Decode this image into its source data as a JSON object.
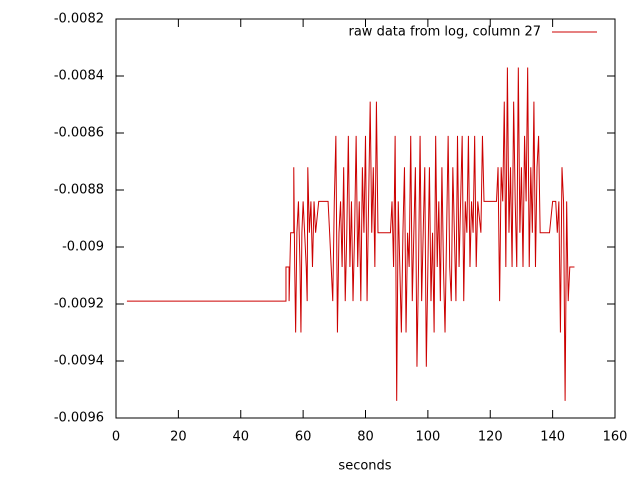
{
  "chart_data": {
    "type": "line",
    "xlabel": "seconds",
    "x": [
      3.5,
      54.5,
      54.5,
      55.5,
      55.5,
      56,
      57,
      57,
      57.3,
      57.6,
      58,
      58.5,
      59,
      59.3,
      59.6,
      60,
      61,
      61.3,
      61.5,
      62,
      62.5,
      63,
      63.5,
      64,
      65,
      66,
      68,
      68.5,
      69,
      69.5,
      70,
      70.5,
      71,
      71.5,
      72,
      72.5,
      73,
      73.5,
      74,
      74.5,
      75,
      75.5,
      76,
      76.5,
      77,
      77.5,
      78,
      78.5,
      79,
      79.5,
      80,
      80.5,
      81,
      81.5,
      82,
      82.5,
      83,
      83.5,
      84,
      86,
      88,
      88.5,
      89,
      89.5,
      90,
      90.5,
      91,
      91.5,
      92,
      92.5,
      93,
      93.5,
      94,
      94.5,
      95,
      95.5,
      96,
      96.5,
      97,
      97.5,
      98,
      98.5,
      99,
      99.5,
      100,
      100.5,
      101,
      101.5,
      102,
      102.5,
      103,
      103.5,
      104,
      104.5,
      105,
      105.5,
      106,
      106.5,
      107,
      107.5,
      108,
      108.5,
      109,
      109.5,
      110,
      110.5,
      111,
      111.5,
      112,
      112.5,
      113,
      113.5,
      114,
      114.5,
      115,
      115.5,
      116,
      117,
      117.5,
      118,
      119,
      120,
      121,
      122,
      122.5,
      123,
      123.5,
      124,
      124.5,
      125,
      125.5,
      126,
      126.5,
      127,
      127.5,
      128,
      128.5,
      129,
      129.5,
      130,
      130.5,
      131,
      131.5,
      132,
      132.5,
      133,
      133.5,
      134,
      134.5,
      135,
      135.5,
      136,
      137,
      138,
      139,
      140,
      141,
      141.5,
      142,
      142.5,
      143,
      143.5,
      144,
      144.5,
      145,
      145.5,
      147
    ],
    "series": [
      {
        "name": "raw data from log, column 27",
        "color": "#cc0000",
        "values": [
          -0.00919,
          -0.00919,
          -0.00907,
          -0.00907,
          -0.00919,
          -0.00895,
          -0.00895,
          -0.00872,
          -0.00907,
          -0.0093,
          -0.00895,
          -0.00884,
          -0.00907,
          -0.0093,
          -0.00895,
          -0.00884,
          -0.00907,
          -0.00919,
          -0.00872,
          -0.00895,
          -0.00884,
          -0.00907,
          -0.00884,
          -0.00895,
          -0.00884,
          -0.00884,
          -0.00884,
          -0.00895,
          -0.00907,
          -0.00919,
          -0.00884,
          -0.00861,
          -0.0093,
          -0.00895,
          -0.00884,
          -0.00907,
          -0.00872,
          -0.00919,
          -0.00895,
          -0.00861,
          -0.00907,
          -0.00884,
          -0.00919,
          -0.00895,
          -0.00861,
          -0.00907,
          -0.00884,
          -0.00919,
          -0.00872,
          -0.00895,
          -0.00861,
          -0.00919,
          -0.00884,
          -0.00849,
          -0.00895,
          -0.00872,
          -0.00907,
          -0.00849,
          -0.00895,
          -0.00895,
          -0.00895,
          -0.00884,
          -0.00907,
          -0.00861,
          -0.00954,
          -0.00884,
          -0.00907,
          -0.0093,
          -0.00895,
          -0.00872,
          -0.0093,
          -0.00895,
          -0.00907,
          -0.00861,
          -0.00919,
          -0.00895,
          -0.00872,
          -0.00942,
          -0.00907,
          -0.00861,
          -0.00919,
          -0.00895,
          -0.00872,
          -0.00942,
          -0.00907,
          -0.00872,
          -0.00919,
          -0.00895,
          -0.0093,
          -0.00861,
          -0.00907,
          -0.00884,
          -0.00919,
          -0.00872,
          -0.00907,
          -0.0093,
          -0.00895,
          -0.00861,
          -0.00907,
          -0.00919,
          -0.00872,
          -0.00895,
          -0.00919,
          -0.00861,
          -0.00907,
          -0.00884,
          -0.00861,
          -0.00919,
          -0.00884,
          -0.00895,
          -0.00861,
          -0.00907,
          -0.00884,
          -0.00895,
          -0.00861,
          -0.00907,
          -0.00884,
          -0.00895,
          -0.00861,
          -0.00884,
          -0.00884,
          -0.00884,
          -0.00884,
          -0.00884,
          -0.00872,
          -0.00919,
          -0.00872,
          -0.00884,
          -0.00849,
          -0.00907,
          -0.00837,
          -0.00895,
          -0.00872,
          -0.00907,
          -0.00849,
          -0.00884,
          -0.00907,
          -0.00837,
          -0.00895,
          -0.00872,
          -0.00907,
          -0.00861,
          -0.00884,
          -0.00837,
          -0.00907,
          -0.00872,
          -0.00895,
          -0.00849,
          -0.00907,
          -0.00872,
          -0.00861,
          -0.00895,
          -0.00895,
          -0.00895,
          -0.00895,
          -0.00884,
          -0.00884,
          -0.00895,
          -0.00884,
          -0.0093,
          -0.00872,
          -0.00884,
          -0.00954,
          -0.00884,
          -0.00919,
          -0.00907,
          -0.00907
        ]
      }
    ],
    "xlim": [
      0,
      160
    ],
    "xticks": [
      0,
      20,
      40,
      60,
      80,
      100,
      120,
      140,
      160
    ],
    "ylim": [
      -0.0096,
      -0.0082
    ],
    "yticks": [
      -0.0096,
      -0.0094,
      -0.0092,
      -0.009,
      -0.0088,
      -0.0086,
      -0.0084,
      -0.0082
    ],
    "grid": false,
    "legend": "top right"
  }
}
